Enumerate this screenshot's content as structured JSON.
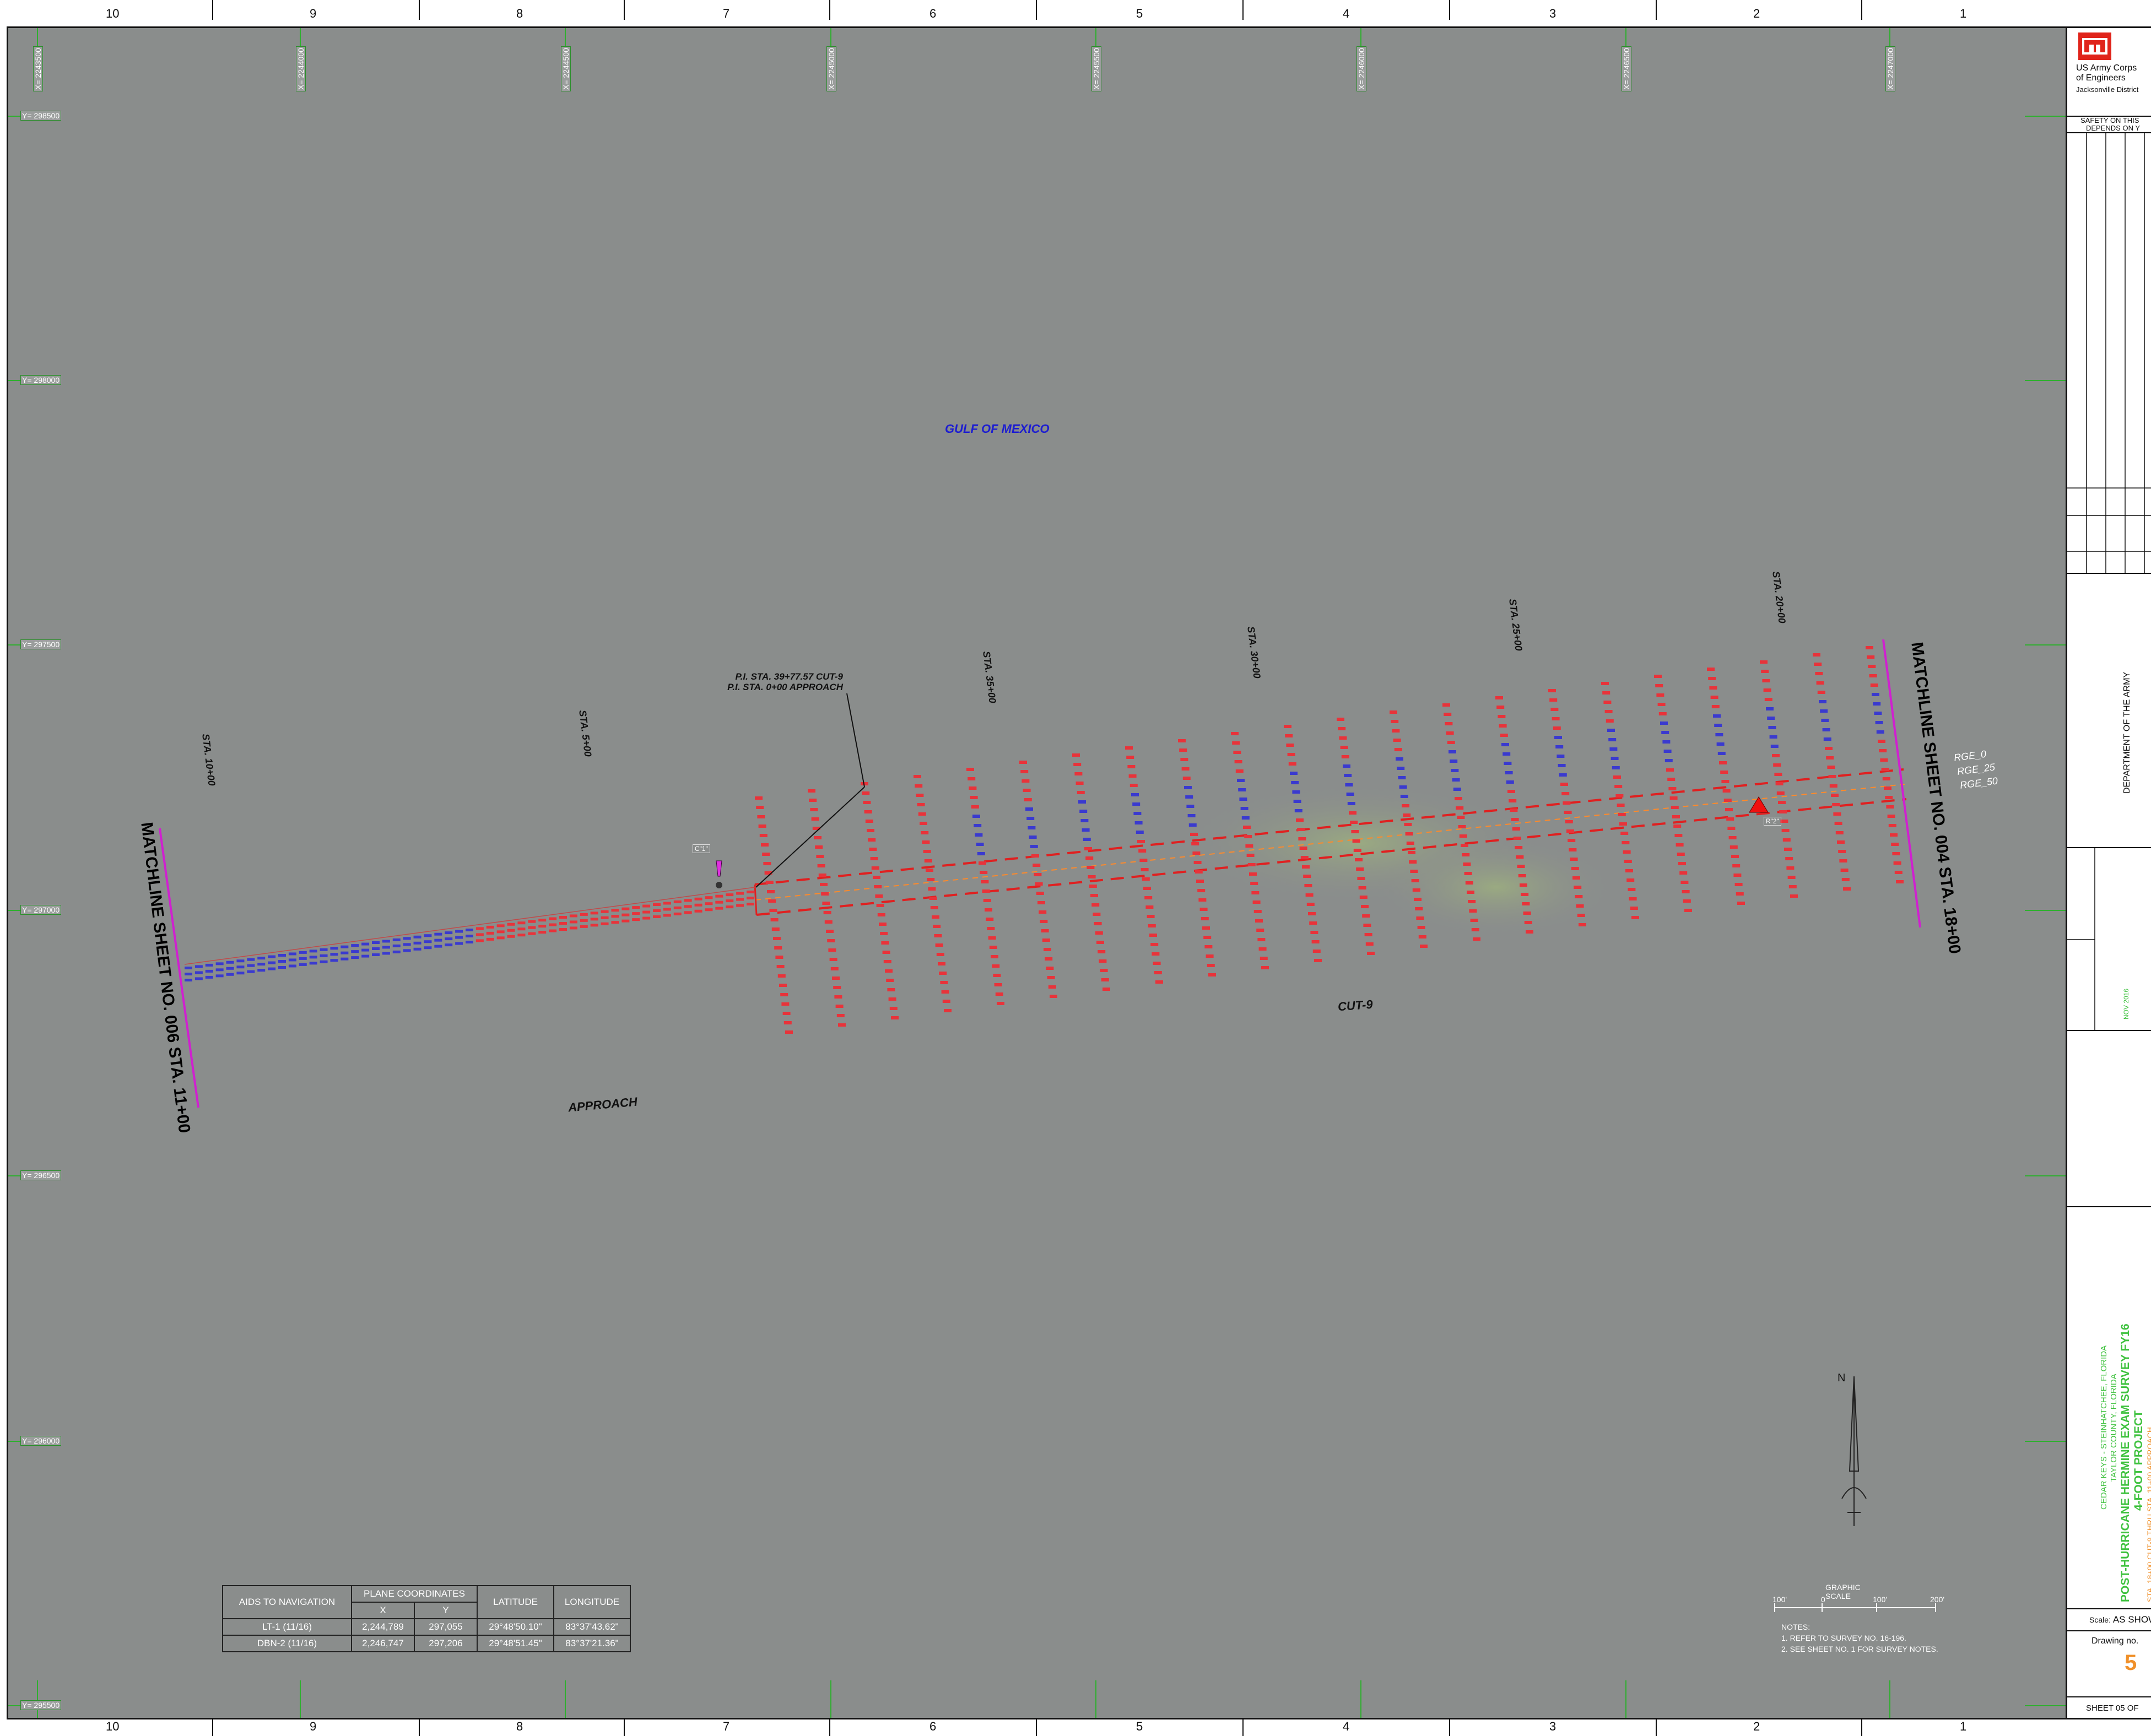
{
  "zones": [
    "10",
    "9",
    "8",
    "7",
    "6",
    "5",
    "4",
    "3",
    "2",
    "1"
  ],
  "x_grid": [
    "X= 2243500",
    "X= 2244000",
    "X= 2244500",
    "X= 2245000",
    "X= 2245500",
    "X= 2246000",
    "X= 2246500",
    "X= 2247000"
  ],
  "y_grid": [
    "Y= 298500",
    "Y= 298000",
    "Y= 297500",
    "Y= 297000",
    "Y= 296500",
    "Y= 296000",
    "Y= 295500"
  ],
  "stations": [
    "STA. 10+00",
    "STA. 5+00",
    "STA. 35+00",
    "STA. 30+00",
    "STA. 25+00",
    "STA. 20+00"
  ],
  "labels": {
    "gulf": "GULF OF MEXICO",
    "cut": "CUT-9",
    "approach": "APPROACH",
    "matchline_left": "MATCHLINE SHEET NO. 006 STA. 11+00",
    "matchline_right": "MATCHLINE SHEET NO. 004 STA. 18+00",
    "pi_line1": "P.I. STA. 39+77.57 CUT-9",
    "pi_line2": "P.I. STA. 0+00 APPROACH",
    "marker_c1": "C\"1\"",
    "marker_r2": "R\"2\"",
    "rge": [
      "RGE_0",
      "RGE_25",
      "RGE_50"
    ]
  },
  "aids_table": {
    "headers": {
      "aid": "AIDS TO NAVIGATION",
      "plane": "PLANE COORDINATES",
      "x": "X",
      "y": "Y",
      "lat": "LATITUDE",
      "lon": "LONGITUDE"
    },
    "rows": [
      {
        "aid": "LT-1 (11/16)",
        "x": "2,244,789",
        "y": "297,055",
        "lat": "29°48'50.10\"",
        "lon": "83°37'43.62\""
      },
      {
        "aid": "DBN-2 (11/16)",
        "x": "2,246,747",
        "y": "297,206",
        "lat": "29°48'51.45\"",
        "lon": "83°37'21.36\""
      }
    ]
  },
  "graphic_scale": {
    "title": "GRAPHIC SCALE",
    "ticks": [
      "100'",
      "0",
      "100'",
      "200'"
    ]
  },
  "north": "N",
  "notes": {
    "title": "NOTES:",
    "items": [
      "1. REFER TO SURVEY NO. 16-196.",
      "2. SEE SHEET NO. 1 FOR SURVEY NOTES."
    ]
  },
  "title_block": {
    "org1": "US Army Corps",
    "org2": "of Engineers",
    "district": "Jacksonville District",
    "safety1": "SAFETY ON THIS",
    "safety2": "DEPENDS ON Y",
    "dept": "DEPARTMENT OF THE ARMY",
    "project_loc1": "CEDAR KEYS - STEINHATCHEE, FLORIDA",
    "project_loc2": "TAYLOR COUNTY, FLORIDA",
    "title1": "POST-HURRICANE HERMINE EXAM SURVEY FY16",
    "title2": "4-FOOT PROJECT",
    "subtitle": "STA. 18+00 CUT-9 THRU STA. 11+00 APPROACH",
    "scale_label": "Scale:",
    "scale_value": "AS SHOW",
    "drawing_label": "Drawing no.",
    "drawing_no": "5",
    "sheet_label": "SHEET",
    "sheet_no": "05",
    "sheet_of": "OF",
    "date": "NOV 2016"
  },
  "colors": {
    "map_bg": "#8a8d8c",
    "channel": "#e02020",
    "soundings_red": "#e8333a",
    "soundings_blue": "#3a3acf",
    "matchline": "#d020d0",
    "title_green": "#3fc23f",
    "title_orange": "#f0902a"
  }
}
